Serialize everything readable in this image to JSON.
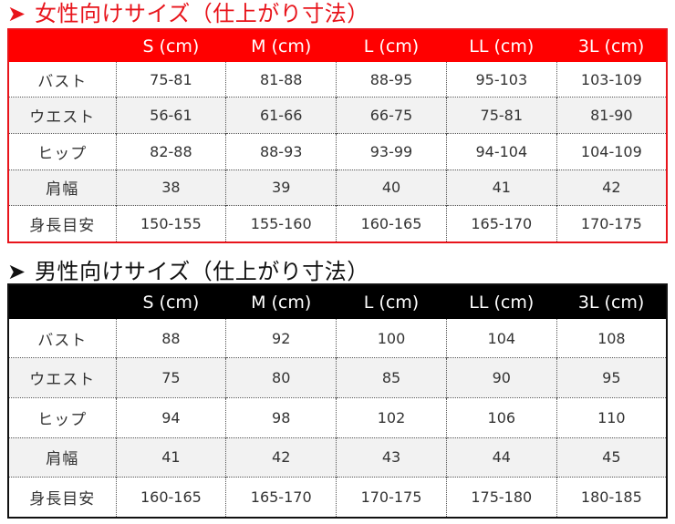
{
  "women": {
    "title": "女性向けサイズ（仕上がり寸法）",
    "headers": [
      "",
      "S (cm)",
      "M (cm)",
      "L (cm)",
      "LL (cm)",
      "3L (cm)"
    ],
    "rows": [
      {
        "label": "バスト",
        "values": [
          "75-81",
          "81-88",
          "88-95",
          "95-103",
          "103-109"
        ]
      },
      {
        "label": "ウエスト",
        "values": [
          "56-61",
          "61-66",
          "66-75",
          "75-81",
          "81-90"
        ]
      },
      {
        "label": "ヒップ",
        "values": [
          "82-88",
          "88-93",
          "93-99",
          "94-104",
          "104-109"
        ]
      },
      {
        "label": "肩幅",
        "values": [
          "38",
          "39",
          "40",
          "41",
          "42"
        ]
      },
      {
        "label": "身長目安",
        "values": [
          "150-155",
          "155-160",
          "160-165",
          "165-170",
          "170-175"
        ]
      }
    ],
    "accent_color": "#ff0000"
  },
  "men": {
    "title": "男性向けサイズ（仕上がり寸法）",
    "headers": [
      "",
      "S (cm)",
      "M (cm)",
      "L (cm)",
      "LL (cm)",
      "3L (cm)"
    ],
    "rows": [
      {
        "label": "バスト",
        "values": [
          "88",
          "92",
          "100",
          "104",
          "108"
        ]
      },
      {
        "label": "ウエスト",
        "values": [
          "75",
          "80",
          "85",
          "90",
          "95"
        ]
      },
      {
        "label": "ヒップ",
        "values": [
          "94",
          "98",
          "102",
          "106",
          "110"
        ]
      },
      {
        "label": "肩幅",
        "values": [
          "41",
          "42",
          "43",
          "44",
          "45"
        ]
      },
      {
        "label": "身長目安",
        "values": [
          "160-165",
          "165-170",
          "170-175",
          "175-180",
          "180-185"
        ]
      }
    ],
    "accent_color": "#000000"
  },
  "icons": {
    "section_arrow": "arrowhead-right-icon"
  }
}
